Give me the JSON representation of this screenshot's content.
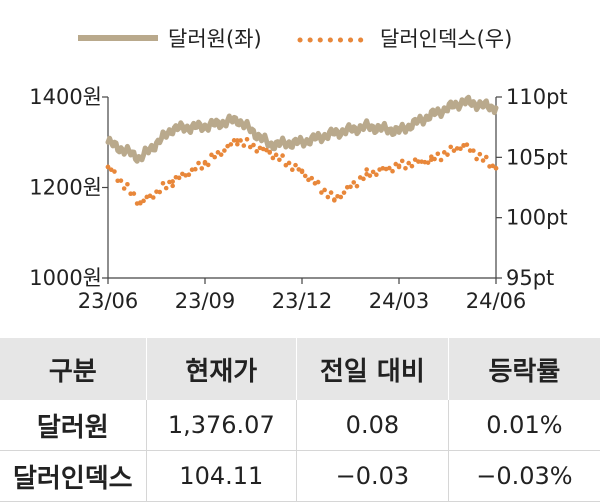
{
  "chart_data": {
    "type": "line",
    "x": [
      "23/06",
      "23/07",
      "23/08",
      "23/09",
      "23/10",
      "23/11",
      "23/12",
      "24/01",
      "24/02",
      "24/03",
      "24/04",
      "24/05",
      "24/06"
    ],
    "x_ticks": [
      "23/06",
      "23/09",
      "23/12",
      "24/03",
      "24/06"
    ],
    "series": [
      {
        "name": "달러원(좌)",
        "axis": "left",
        "color": "#b9a98c",
        "style": "solid",
        "values": [
          1300,
          1265,
          1330,
          1335,
          1350,
          1295,
          1300,
          1320,
          1335,
          1325,
          1360,
          1390,
          1376
        ]
      },
      {
        "name": "달러인덱스(우)",
        "axis": "right",
        "color": "#e8873a",
        "style": "dotted",
        "values": [
          104.2,
          101.2,
          103.0,
          104.5,
          106.4,
          105.4,
          103.8,
          101.5,
          103.6,
          104.3,
          104.8,
          106.0,
          104.1
        ]
      }
    ],
    "y_left": {
      "ticks": [
        "1400원",
        "1200원",
        "1000원"
      ],
      "range": [
        1000,
        1400
      ]
    },
    "y_right": {
      "ticks": [
        "110pt",
        "105pt",
        "100pt",
        "95pt"
      ],
      "range": [
        95,
        110
      ]
    },
    "legend_position": "top",
    "grid": false
  },
  "table": {
    "headers": [
      "구분",
      "현재가",
      "전일 대비",
      "등락률"
    ],
    "rows": [
      {
        "label": "달러원",
        "price": "1,376.07",
        "change": "0.08",
        "rate": "0.01%"
      },
      {
        "label": "달러인덱스",
        "price": "104.11",
        "change": "−0.03",
        "rate": "−0.03%"
      }
    ]
  }
}
